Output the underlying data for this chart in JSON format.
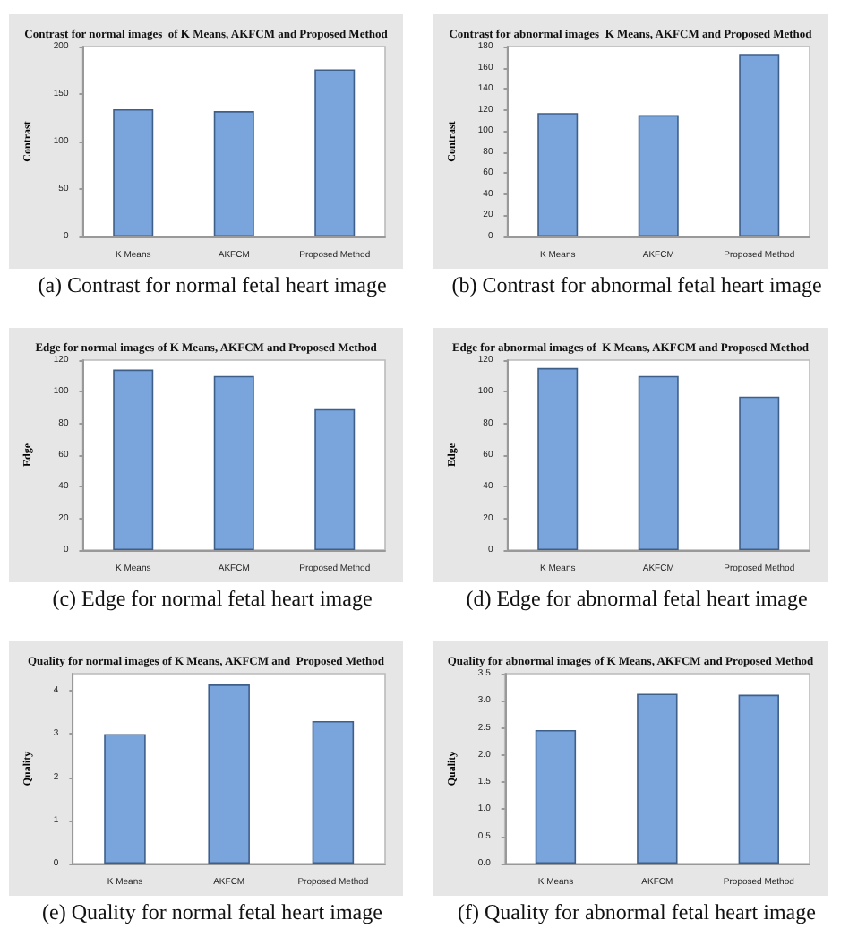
{
  "chart_data": [
    {
      "type": "bar",
      "title": "Contrast for normal images  of K Means, AKFCM and Proposed Method",
      "ylabel": "Contrast",
      "categories": [
        "K Means",
        "AKFCM",
        "Proposed Method"
      ],
      "values": [
        134,
        132,
        176
      ],
      "color": "#7aa5dc",
      "ylim": [
        0,
        200
      ],
      "yticks": [
        0,
        50,
        100,
        150,
        200
      ],
      "grid": false,
      "annotations": [
        "(a) Contrast for normal fetal heart image"
      ]
    },
    {
      "type": "bar",
      "title": "Contrast for abnormal images  K Means, AKFCM and Proposed Method",
      "ylabel": "Contrast",
      "categories": [
        "K Means",
        "AKFCM",
        "Proposed Method"
      ],
      "values": [
        117,
        115,
        173
      ],
      "color": "#7aa5dc",
      "ylim": [
        0,
        180
      ],
      "yticks": [
        0,
        20,
        40,
        60,
        80,
        100,
        120,
        140,
        160,
        180
      ],
      "grid": false,
      "annotations": [
        "(b) Contrast for abnormal fetal heart image"
      ]
    },
    {
      "type": "bar",
      "title": "Edge for normal images of K Means, AKFCM and Proposed Method",
      "ylabel": "Edge",
      "categories": [
        "K Means",
        "AKFCM",
        "Proposed Method"
      ],
      "values": [
        114,
        110,
        89
      ],
      "color": "#7aa5dc",
      "ylim": [
        0,
        120
      ],
      "yticks": [
        0,
        20,
        40,
        60,
        80,
        100,
        120
      ],
      "grid": false,
      "annotations": [
        "(c) Edge for normal fetal heart image"
      ]
    },
    {
      "type": "bar",
      "title": "Edge for abnormal images of  K Means, AKFCM and Proposed Method",
      "ylabel": "Edge",
      "categories": [
        "K Means",
        "AKFCM",
        "Proposed Method"
      ],
      "values": [
        115,
        110,
        97
      ],
      "color": "#7aa5dc",
      "ylim": [
        0,
        120
      ],
      "yticks": [
        0,
        20,
        40,
        60,
        80,
        100,
        120
      ],
      "grid": false,
      "annotations": [
        "(d) Edge for abnormal fetal heart image"
      ]
    },
    {
      "type": "bar",
      "title": "Quality for normal images of K Means, AKFCM and  Proposed Method",
      "ylabel": "Quality",
      "categories": [
        "K Means",
        "AKFCM",
        "Proposed Method"
      ],
      "values": [
        3.0,
        4.15,
        3.3
      ],
      "color": "#7aa5dc",
      "ylim": [
        0,
        4.4
      ],
      "yticks": [
        0,
        1,
        2,
        3,
        4
      ],
      "grid": false,
      "annotations": [
        "(e) Quality for normal fetal heart image"
      ]
    },
    {
      "type": "bar",
      "title": "Quality for abnormal images of K Means, AKFCM and Proposed Method",
      "ylabel": "Quality",
      "categories": [
        "K Means",
        "AKFCM",
        "Proposed Method"
      ],
      "values": [
        2.46,
        3.13,
        3.11
      ],
      "color": "#7aa5dc",
      "ylim": [
        0,
        3.5
      ],
      "yticks": [
        {
          "value": 0,
          "label": "0.0"
        },
        {
          "value": 0.5,
          "label": "0.5"
        },
        {
          "value": 1,
          "label": "1.0"
        },
        {
          "value": 1.5,
          "label": "1.5"
        },
        {
          "value": 2,
          "label": "2.0"
        },
        {
          "value": 2.5,
          "label": "2.5"
        },
        {
          "value": 3,
          "label": "3.0"
        },
        {
          "value": 3.5,
          "label": "3.5"
        }
      ],
      "grid": false,
      "annotations": [
        "(f) Quality for abnormal fetal heart image"
      ]
    }
  ]
}
